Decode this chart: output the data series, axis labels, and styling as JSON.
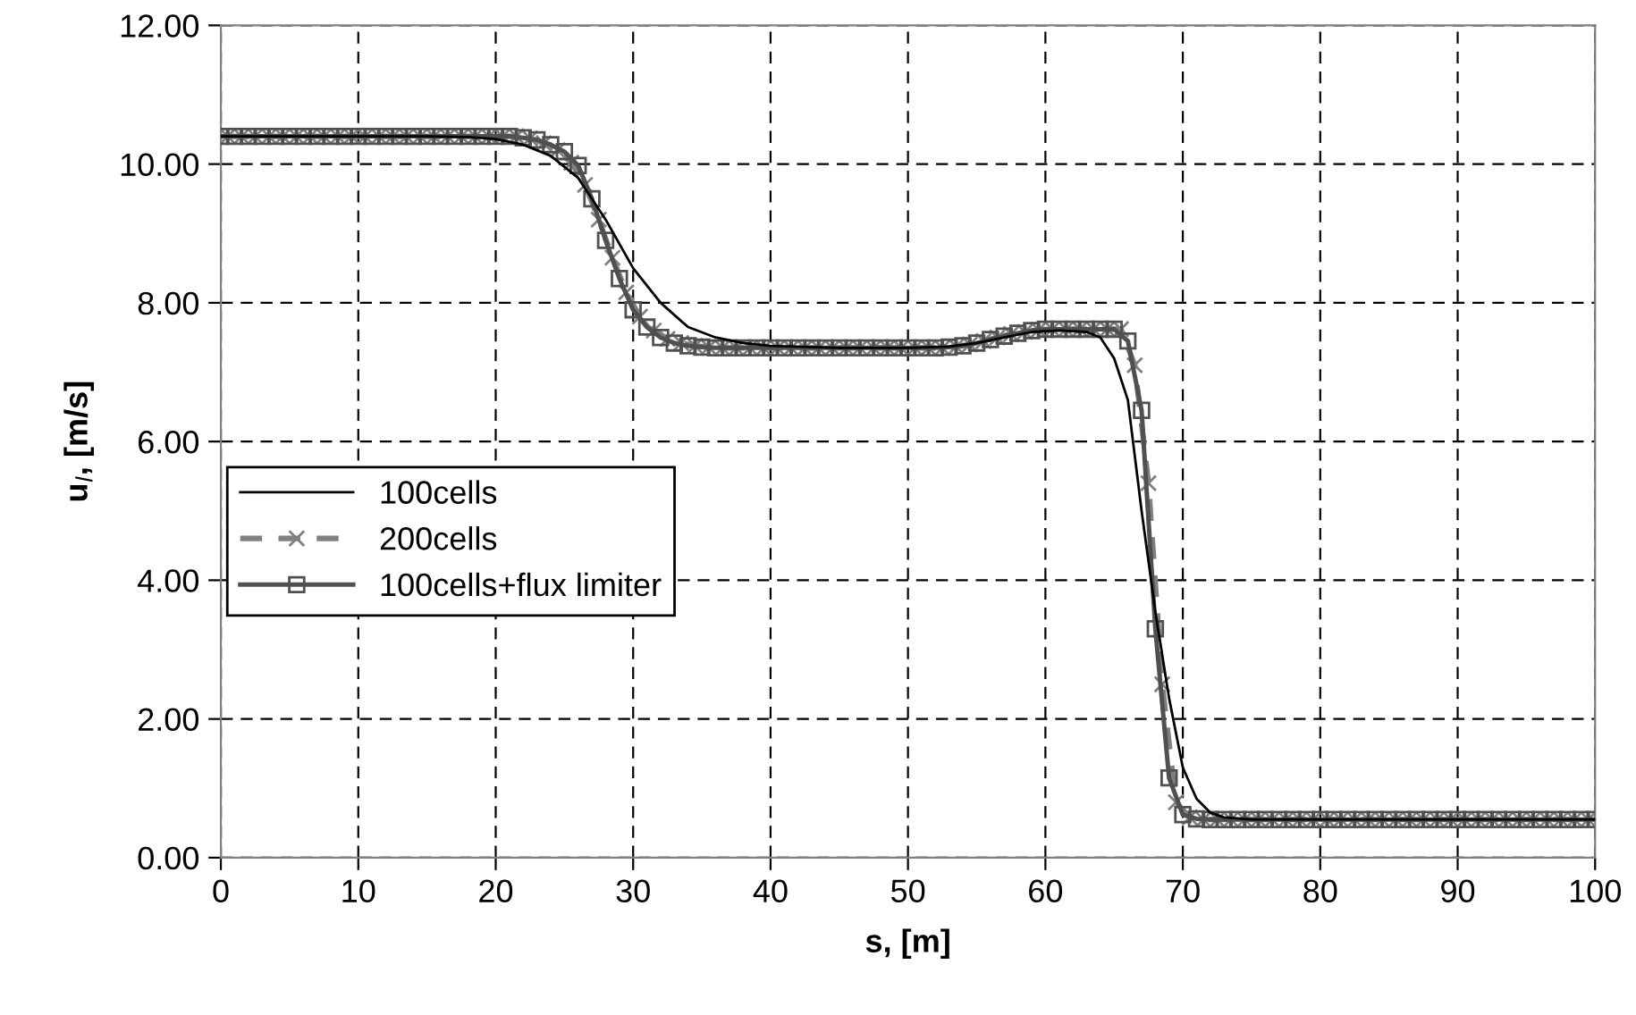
{
  "chart_data": {
    "type": "line",
    "xlabel": "s, [m]",
    "ylabel": "u$_{l}$, [m/s]",
    "xlim": [
      0,
      100
    ],
    "xticks": [
      0,
      10,
      20,
      30,
      40,
      50,
      60,
      70,
      80,
      90,
      100
    ],
    "ylim": [
      0,
      12
    ],
    "yticks": [
      {
        "value": 0,
        "label": "0.00"
      },
      {
        "value": 2,
        "label": "2.00"
      },
      {
        "value": 4,
        "label": "4.00"
      },
      {
        "value": 6,
        "label": "6.00"
      },
      {
        "value": 8,
        "label": "8.00"
      },
      {
        "value": 10,
        "label": "10.00"
      },
      {
        "value": 12,
        "label": "12.00"
      }
    ],
    "grid": true,
    "legend": "left",
    "series": [
      {
        "name": "100cells",
        "color": "#000000",
        "marker": "none",
        "line_style": "solid",
        "x": [
          0,
          5,
          10,
          15,
          18,
          20,
          22,
          24,
          26,
          28,
          30,
          32,
          34,
          36,
          38,
          40,
          45,
          50,
          53,
          55,
          57,
          59,
          61,
          63,
          64,
          65,
          66,
          67,
          68,
          69,
          70,
          71,
          72,
          73,
          75,
          80,
          90,
          100
        ],
        "values": [
          10.4,
          10.4,
          10.4,
          10.4,
          10.39,
          10.36,
          10.28,
          10.12,
          9.8,
          9.2,
          8.5,
          8.0,
          7.65,
          7.5,
          7.42,
          7.38,
          7.35,
          7.35,
          7.37,
          7.42,
          7.5,
          7.58,
          7.6,
          7.58,
          7.5,
          7.2,
          6.6,
          5.0,
          3.55,
          2.3,
          1.3,
          0.85,
          0.65,
          0.58,
          0.55,
          0.55,
          0.55,
          0.55
        ]
      },
      {
        "name": "200cells",
        "color": "#808080",
        "marker": "cross",
        "line_style": "dashed",
        "x": [
          0.5,
          1.5,
          2.5,
          3.5,
          4.5,
          5.5,
          6.5,
          7.5,
          8.5,
          9.5,
          10.5,
          11.5,
          12.5,
          13.5,
          14.5,
          15.5,
          16.5,
          17.5,
          18.5,
          19.5,
          20.5,
          21.5,
          22.5,
          23.5,
          24.5,
          25.5,
          26.5,
          27.5,
          28.5,
          29.5,
          30.5,
          31.5,
          32.5,
          33.5,
          34.5,
          35.5,
          36.5,
          37.5,
          38.5,
          39.5,
          40.5,
          41.5,
          42.5,
          43.5,
          44.5,
          45.5,
          46.5,
          47.5,
          48.5,
          49.5,
          50.5,
          51.5,
          52.5,
          53.5,
          54.5,
          55.5,
          56.5,
          57.5,
          58.5,
          59.5,
          60.5,
          61.5,
          62.5,
          63.5,
          64.5,
          65.5,
          66.5,
          67.5,
          68.5,
          69.5,
          70.5,
          71.5,
          72.5,
          73.5,
          74.5,
          75.5,
          76.5,
          77.5,
          78.5,
          79.5,
          80.5,
          81.5,
          82.5,
          83.5,
          84.5,
          85.5,
          86.5,
          87.5,
          88.5,
          89.5,
          90.5,
          91.5,
          92.5,
          93.5,
          94.5,
          95.5,
          96.5,
          97.5,
          98.5,
          99.5
        ],
        "values": [
          10.4,
          10.4,
          10.4,
          10.4,
          10.4,
          10.4,
          10.4,
          10.4,
          10.4,
          10.4,
          10.4,
          10.4,
          10.4,
          10.4,
          10.4,
          10.4,
          10.4,
          10.4,
          10.4,
          10.4,
          10.4,
          10.4,
          10.37,
          10.3,
          10.2,
          10.02,
          9.7,
          9.2,
          8.65,
          8.15,
          7.8,
          7.6,
          7.48,
          7.42,
          7.38,
          7.36,
          7.35,
          7.35,
          7.35,
          7.35,
          7.35,
          7.35,
          7.35,
          7.35,
          7.35,
          7.35,
          7.35,
          7.35,
          7.35,
          7.35,
          7.35,
          7.35,
          7.35,
          7.37,
          7.4,
          7.45,
          7.5,
          7.55,
          7.58,
          7.61,
          7.62,
          7.62,
          7.62,
          7.62,
          7.62,
          7.62,
          7.1,
          5.4,
          2.5,
          0.8,
          0.58,
          0.55,
          0.55,
          0.55,
          0.55,
          0.55,
          0.55,
          0.55,
          0.55,
          0.55,
          0.55,
          0.55,
          0.55,
          0.55,
          0.55,
          0.55,
          0.55,
          0.55,
          0.55,
          0.55,
          0.55,
          0.55,
          0.55,
          0.55,
          0.55,
          0.55,
          0.55,
          0.55,
          0.55,
          0.55
        ]
      },
      {
        "name": "100cells+flux limiter",
        "color": "#505050",
        "marker": "square",
        "line_style": "solid",
        "x": [
          0,
          1,
          2,
          3,
          4,
          5,
          6,
          7,
          8,
          9,
          10,
          11,
          12,
          13,
          14,
          15,
          16,
          17,
          18,
          19,
          20,
          21,
          22,
          23,
          24,
          25,
          26,
          27,
          28,
          29,
          30,
          31,
          32,
          33,
          34,
          35,
          36,
          37,
          38,
          39,
          40,
          41,
          42,
          43,
          44,
          45,
          46,
          47,
          48,
          49,
          50,
          51,
          52,
          53,
          54,
          55,
          56,
          57,
          58,
          59,
          60,
          61,
          62,
          63,
          64,
          65,
          66,
          67,
          68,
          69,
          70,
          71,
          72,
          73,
          74,
          75,
          76,
          77,
          78,
          79,
          80,
          81,
          82,
          83,
          84,
          85,
          86,
          87,
          88,
          89,
          90,
          91,
          92,
          93,
          94,
          95,
          96,
          97,
          98,
          99,
          100
        ],
        "values": [
          10.4,
          10.4,
          10.4,
          10.4,
          10.4,
          10.4,
          10.4,
          10.4,
          10.4,
          10.4,
          10.4,
          10.4,
          10.4,
          10.4,
          10.4,
          10.4,
          10.4,
          10.4,
          10.4,
          10.4,
          10.4,
          10.4,
          10.38,
          10.35,
          10.28,
          10.18,
          9.98,
          9.5,
          8.9,
          8.35,
          7.9,
          7.65,
          7.5,
          7.42,
          7.38,
          7.36,
          7.35,
          7.35,
          7.35,
          7.35,
          7.35,
          7.35,
          7.35,
          7.35,
          7.35,
          7.35,
          7.35,
          7.35,
          7.35,
          7.35,
          7.35,
          7.35,
          7.35,
          7.36,
          7.38,
          7.42,
          7.47,
          7.52,
          7.56,
          7.6,
          7.62,
          7.62,
          7.62,
          7.62,
          7.62,
          7.62,
          7.45,
          6.45,
          3.3,
          1.15,
          0.62,
          0.56,
          0.55,
          0.55,
          0.55,
          0.55,
          0.55,
          0.55,
          0.55,
          0.55,
          0.55,
          0.55,
          0.55,
          0.55,
          0.55,
          0.55,
          0.55,
          0.55,
          0.55,
          0.55,
          0.55,
          0.55,
          0.55,
          0.55,
          0.55,
          0.55,
          0.55,
          0.55,
          0.55,
          0.55,
          0.55
        ]
      }
    ]
  }
}
